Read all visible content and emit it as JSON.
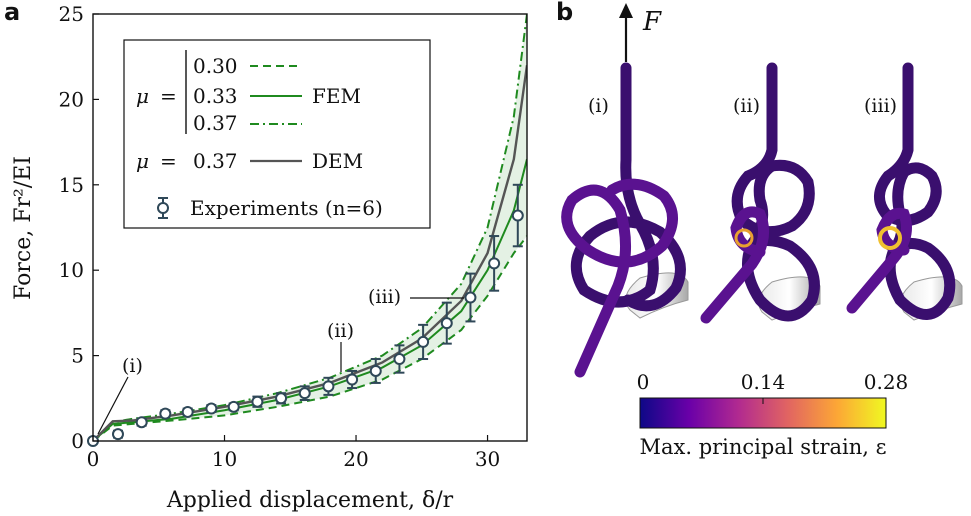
{
  "panel_a": {
    "label": "a",
    "chart_data": {
      "type": "line",
      "xlabel": "Applied displacement, δ/r",
      "ylabel": "Force, Fr²/EI",
      "xlim": [
        0,
        33
      ],
      "ylim": [
        0,
        25
      ],
      "xticks": [
        "0",
        "10",
        "20",
        "30"
      ],
      "yticks": [
        "0",
        "5",
        "10",
        "15",
        "20",
        "25"
      ],
      "series": [
        {
          "name": "FEM μ = 0.30",
          "style": "dashed",
          "color": "#1f8a1f",
          "x": [
            0,
            1.5,
            3,
            6,
            10,
            14,
            18,
            22,
            25,
            28,
            30,
            32,
            33
          ],
          "y": [
            0,
            0.9,
            1.0,
            1.2,
            1.5,
            2.0,
            2.6,
            3.6,
            4.8,
            6.5,
            8.5,
            11.0,
            12.0
          ]
        },
        {
          "name": "FEM μ = 0.33",
          "style": "solid",
          "color": "#1f8a1f",
          "x": [
            0,
            1.5,
            3,
            6,
            10,
            14,
            18,
            22,
            25,
            28,
            30,
            32,
            33
          ],
          "y": [
            0,
            1.0,
            1.1,
            1.3,
            1.8,
            2.4,
            3.2,
            4.3,
            5.6,
            7.6,
            10.0,
            13.5,
            16.5
          ]
        },
        {
          "name": "FEM μ = 0.37",
          "style": "dashdot",
          "color": "#1f8a1f",
          "x": [
            0,
            1.5,
            3,
            6,
            10,
            14,
            18,
            22,
            25,
            28,
            30,
            32,
            33
          ],
          "y": [
            0,
            1.1,
            1.3,
            1.6,
            2.1,
            2.8,
            3.7,
            5.0,
            6.6,
            9.2,
            12.5,
            19.0,
            25.0
          ]
        },
        {
          "name": "DEM μ = 0.37",
          "style": "solid",
          "color": "#555555",
          "x": [
            0,
            1.5,
            3,
            6,
            10,
            14,
            18,
            22,
            25,
            28,
            30,
            32,
            33
          ],
          "y": [
            0,
            1.15,
            1.2,
            1.5,
            2.0,
            2.6,
            3.4,
            4.6,
            6.0,
            8.2,
            11.0,
            16.5,
            22.0
          ]
        }
      ],
      "experiments": {
        "name": "Experiments (n=6)",
        "color": "#2f4858",
        "x": [
          0,
          1.9,
          3.7,
          5.5,
          7.2,
          9.0,
          10.7,
          12.5,
          14.3,
          16.1,
          17.9,
          19.7,
          21.5,
          23.3,
          25.1,
          26.9,
          28.7,
          30.5,
          32.3
        ],
        "y": [
          0,
          0.4,
          1.1,
          1.6,
          1.7,
          1.9,
          2.0,
          2.3,
          2.5,
          2.8,
          3.2,
          3.6,
          4.1,
          4.8,
          5.8,
          6.9,
          8.4,
          10.4,
          13.2
        ],
        "err": [
          0,
          0.2,
          0.2,
          0.2,
          0.2,
          0.2,
          0.2,
          0.3,
          0.3,
          0.4,
          0.5,
          0.5,
          0.7,
          0.8,
          1.0,
          1.2,
          1.4,
          1.6,
          1.8
        ]
      },
      "annotations": [
        {
          "label": "(i)",
          "x": 0,
          "y": 0
        },
        {
          "label": "(ii)",
          "x": 19.7,
          "y": 3.6
        },
        {
          "label": "(iii)",
          "x": 28.7,
          "y": 8.4
        }
      ]
    },
    "legend": {
      "mu_symbol": "μ",
      "equals": "=",
      "mu_values": [
        "0.30",
        "0.33",
        "0.37"
      ],
      "fem_label": "FEM",
      "dem_mu": "0.37",
      "dem_label": "DEM",
      "exp_label": "Experiments (n=6)"
    }
  },
  "panel_b": {
    "label": "b",
    "force_label": "F",
    "knots": [
      "(i)",
      "(ii)",
      "(iii)"
    ],
    "colorbar": {
      "ticks": [
        "0",
        "0.14",
        "0.28"
      ],
      "label": "Max. principal strain, ε",
      "colors": [
        "#0d0887",
        "#6a00a8",
        "#b12a90",
        "#e16462",
        "#fca636",
        "#f0f921"
      ]
    }
  }
}
